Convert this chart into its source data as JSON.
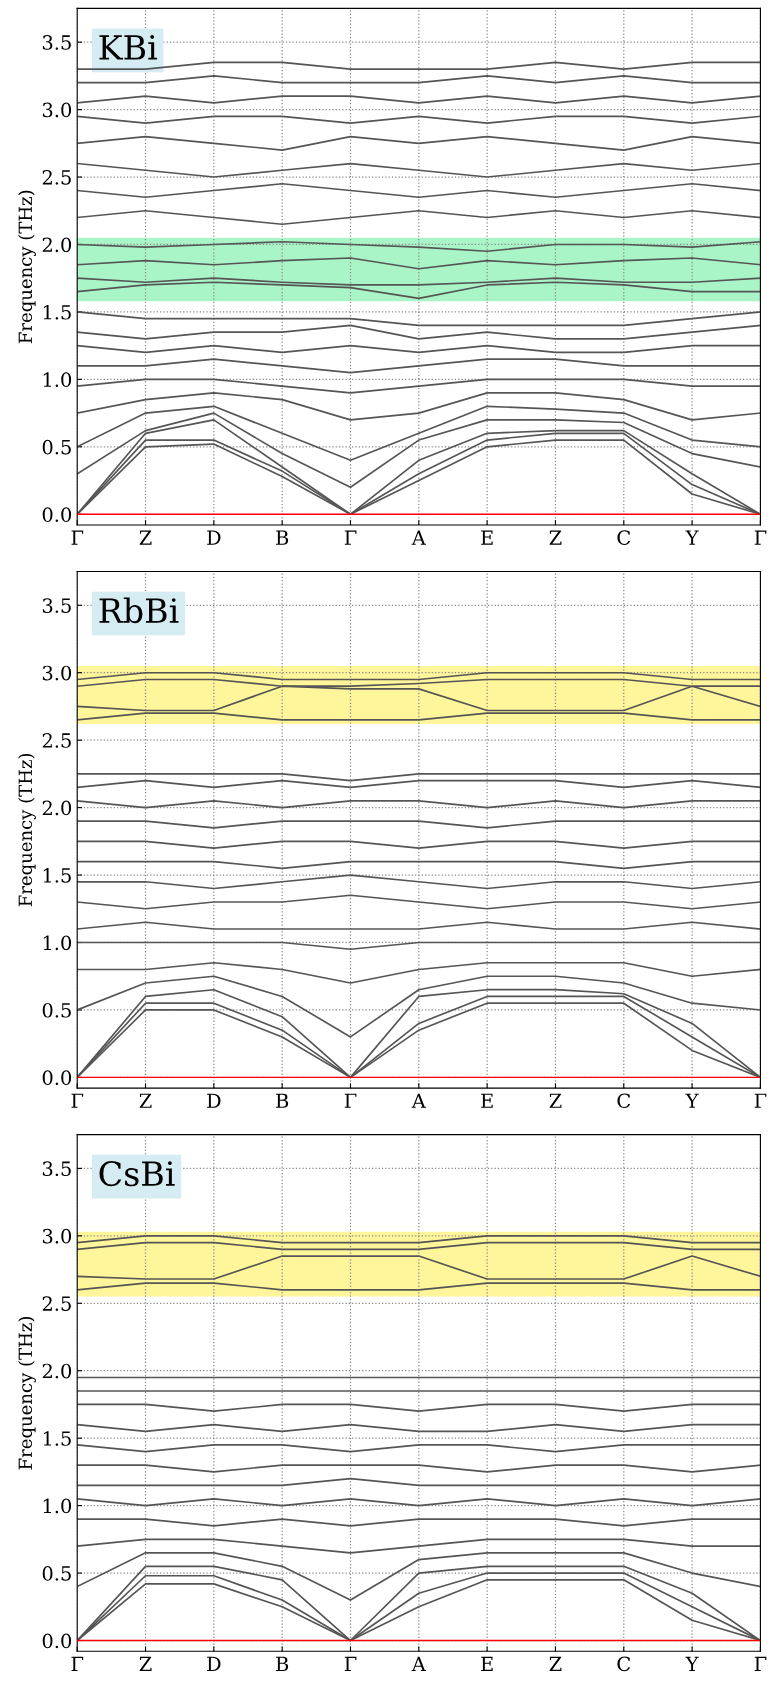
{
  "chart_data": [
    {
      "type": "line",
      "ylabel": "Frequency (THz)",
      "annotations": [
        "KBi"
      ],
      "categories": [
        "Γ",
        "Z",
        "D",
        "B",
        "Γ",
        "A",
        "E",
        "Z",
        "C",
        "Y",
        "Γ"
      ],
      "ylim": [
        -0.08,
        3.75
      ],
      "yticks": [
        {
          "value": 0,
          "label": "0.0"
        },
        {
          "value": 0.5,
          "label": "0.5"
        },
        {
          "value": 1,
          "label": "1.0"
        },
        {
          "value": 1.5,
          "label": "1.5"
        },
        {
          "value": 2,
          "label": "2.0"
        },
        {
          "value": 2.5,
          "label": "2.5"
        },
        {
          "value": 3,
          "label": "3.0"
        },
        {
          "value": 3.5,
          "label": "3.5"
        }
      ],
      "grid": true,
      "marker": "none",
      "line_style": "solid",
      "ref_lines": [
        {
          "axis": "y",
          "value": 0,
          "color": "#ff0000"
        }
      ],
      "bands": [
        {
          "axis": "y",
          "from": 1.58,
          "to": 2.05,
          "color": "#aaf5c8"
        }
      ],
      "series": [
        {
          "color": "#555555",
          "values": [
            0,
            0.5,
            0.52,
            0.28,
            0,
            0.25,
            0.5,
            0.55,
            0.55,
            0.15,
            0
          ]
        },
        {
          "color": "#555555",
          "values": [
            0,
            0.55,
            0.55,
            0.32,
            0,
            0.3,
            0.55,
            0.6,
            0.6,
            0.22,
            0
          ]
        },
        {
          "color": "#555555",
          "values": [
            0,
            0.6,
            0.7,
            0.35,
            0,
            0.4,
            0.6,
            0.62,
            0.62,
            0.3,
            0
          ]
        },
        {
          "color": "#555555",
          "values": [
            0.3,
            0.62,
            0.75,
            0.45,
            0.2,
            0.55,
            0.7,
            0.7,
            0.68,
            0.45,
            0.35
          ]
        },
        {
          "color": "#555555",
          "values": [
            0.5,
            0.75,
            0.8,
            0.6,
            0.4,
            0.6,
            0.8,
            0.78,
            0.75,
            0.55,
            0.5
          ]
        },
        {
          "color": "#555555",
          "values": [
            0.75,
            0.85,
            0.9,
            0.85,
            0.7,
            0.75,
            0.9,
            0.9,
            0.85,
            0.7,
            0.75
          ]
        },
        {
          "color": "#555555",
          "values": [
            0.95,
            1.0,
            1.0,
            0.95,
            0.9,
            0.95,
            1.0,
            1.0,
            1.0,
            0.95,
            0.95
          ]
        },
        {
          "color": "#555555",
          "values": [
            1.1,
            1.1,
            1.15,
            1.1,
            1.05,
            1.1,
            1.15,
            1.15,
            1.1,
            1.1,
            1.1
          ]
        },
        {
          "color": "#555555",
          "values": [
            1.25,
            1.2,
            1.25,
            1.2,
            1.25,
            1.2,
            1.25,
            1.2,
            1.2,
            1.25,
            1.25
          ]
        },
        {
          "color": "#555555",
          "values": [
            1.35,
            1.3,
            1.35,
            1.35,
            1.4,
            1.3,
            1.35,
            1.3,
            1.3,
            1.35,
            1.4
          ]
        },
        {
          "color": "#555555",
          "values": [
            1.5,
            1.45,
            1.45,
            1.45,
            1.45,
            1.4,
            1.4,
            1.4,
            1.4,
            1.45,
            1.5
          ]
        },
        {
          "color": "#555555",
          "values": [
            1.65,
            1.7,
            1.72,
            1.7,
            1.68,
            1.6,
            1.7,
            1.72,
            1.7,
            1.65,
            1.65
          ]
        },
        {
          "color": "#555555",
          "values": [
            1.75,
            1.72,
            1.75,
            1.72,
            1.7,
            1.7,
            1.72,
            1.75,
            1.72,
            1.72,
            1.75
          ]
        },
        {
          "color": "#555555",
          "values": [
            1.85,
            1.88,
            1.85,
            1.88,
            1.9,
            1.82,
            1.88,
            1.85,
            1.88,
            1.9,
            1.85
          ]
        },
        {
          "color": "#555555",
          "values": [
            2.0,
            1.98,
            2.0,
            2.02,
            2.0,
            1.98,
            1.95,
            2.0,
            2.0,
            1.98,
            2.02
          ]
        },
        {
          "color": "#555555",
          "values": [
            2.2,
            2.25,
            2.2,
            2.15,
            2.2,
            2.25,
            2.2,
            2.25,
            2.2,
            2.25,
            2.2
          ]
        },
        {
          "color": "#555555",
          "values": [
            2.4,
            2.35,
            2.4,
            2.45,
            2.4,
            2.35,
            2.4,
            2.35,
            2.4,
            2.45,
            2.4
          ]
        },
        {
          "color": "#555555",
          "values": [
            2.6,
            2.55,
            2.5,
            2.55,
            2.6,
            2.55,
            2.5,
            2.55,
            2.6,
            2.55,
            2.6
          ]
        },
        {
          "color": "#555555",
          "values": [
            2.75,
            2.8,
            2.75,
            2.7,
            2.8,
            2.75,
            2.8,
            2.75,
            2.7,
            2.8,
            2.75
          ]
        },
        {
          "color": "#555555",
          "values": [
            2.95,
            2.9,
            2.95,
            2.95,
            2.9,
            2.95,
            2.9,
            2.95,
            2.95,
            2.9,
            2.95
          ]
        },
        {
          "color": "#555555",
          "values": [
            3.05,
            3.1,
            3.05,
            3.1,
            3.1,
            3.05,
            3.1,
            3.05,
            3.1,
            3.05,
            3.1
          ]
        },
        {
          "color": "#555555",
          "values": [
            3.2,
            3.2,
            3.25,
            3.2,
            3.2,
            3.2,
            3.25,
            3.2,
            3.25,
            3.2,
            3.2
          ]
        },
        {
          "color": "#555555",
          "values": [
            3.3,
            3.3,
            3.35,
            3.35,
            3.3,
            3.3,
            3.3,
            3.35,
            3.3,
            3.35,
            3.35
          ]
        }
      ]
    },
    {
      "type": "line",
      "ylabel": "Frequency (THz)",
      "annotations": [
        "RbBi"
      ],
      "categories": [
        "Γ",
        "Z",
        "D",
        "B",
        "Γ",
        "A",
        "E",
        "Z",
        "C",
        "Y",
        "Γ"
      ],
      "ylim": [
        -0.08,
        3.75
      ],
      "yticks": [
        {
          "value": 0,
          "label": "0.0"
        },
        {
          "value": 0.5,
          "label": "0.5"
        },
        {
          "value": 1,
          "label": "1.0"
        },
        {
          "value": 1.5,
          "label": "1.5"
        },
        {
          "value": 2,
          "label": "2.0"
        },
        {
          "value": 2.5,
          "label": "2.5"
        },
        {
          "value": 3,
          "label": "3.0"
        },
        {
          "value": 3.5,
          "label": "3.5"
        }
      ],
      "grid": true,
      "marker": "none",
      "line_style": "solid",
      "ref_lines": [
        {
          "axis": "y",
          "value": 0,
          "color": "#ff0000"
        }
      ],
      "bands": [
        {
          "axis": "y",
          "from": 2.62,
          "to": 3.05,
          "color": "#fff59a"
        }
      ],
      "series": [
        {
          "color": "#555555",
          "values": [
            0,
            0.5,
            0.5,
            0.3,
            0,
            0.35,
            0.55,
            0.55,
            0.55,
            0.2,
            0
          ]
        },
        {
          "color": "#555555",
          "values": [
            0,
            0.55,
            0.55,
            0.35,
            0,
            0.4,
            0.6,
            0.6,
            0.6,
            0.3,
            0
          ]
        },
        {
          "color": "#555555",
          "values": [
            0,
            0.6,
            0.65,
            0.45,
            0,
            0.6,
            0.65,
            0.65,
            0.62,
            0.4,
            0
          ]
        },
        {
          "color": "#555555",
          "values": [
            0.5,
            0.7,
            0.75,
            0.6,
            0.3,
            0.65,
            0.75,
            0.75,
            0.7,
            0.55,
            0.5
          ]
        },
        {
          "color": "#555555",
          "values": [
            0.8,
            0.8,
            0.85,
            0.8,
            0.7,
            0.8,
            0.85,
            0.85,
            0.85,
            0.75,
            0.8
          ]
        },
        {
          "color": "#555555",
          "values": [
            1.0,
            1.0,
            1.0,
            1.0,
            0.95,
            1.0,
            1.0,
            1.0,
            1.0,
            1.0,
            1.0
          ]
        },
        {
          "color": "#555555",
          "values": [
            1.1,
            1.15,
            1.1,
            1.1,
            1.1,
            1.1,
            1.15,
            1.1,
            1.1,
            1.15,
            1.1
          ]
        },
        {
          "color": "#555555",
          "values": [
            1.3,
            1.25,
            1.3,
            1.3,
            1.35,
            1.3,
            1.25,
            1.3,
            1.3,
            1.25,
            1.3
          ]
        },
        {
          "color": "#555555",
          "values": [
            1.45,
            1.45,
            1.4,
            1.45,
            1.5,
            1.45,
            1.4,
            1.45,
            1.45,
            1.4,
            1.45
          ]
        },
        {
          "color": "#555555",
          "values": [
            1.6,
            1.6,
            1.6,
            1.55,
            1.6,
            1.6,
            1.6,
            1.6,
            1.55,
            1.6,
            1.6
          ]
        },
        {
          "color": "#555555",
          "values": [
            1.75,
            1.75,
            1.7,
            1.75,
            1.75,
            1.7,
            1.75,
            1.75,
            1.7,
            1.75,
            1.75
          ]
        },
        {
          "color": "#555555",
          "values": [
            1.9,
            1.9,
            1.85,
            1.9,
            1.9,
            1.9,
            1.85,
            1.9,
            1.9,
            1.9,
            1.9
          ]
        },
        {
          "color": "#555555",
          "values": [
            2.05,
            2.0,
            2.05,
            2.0,
            2.05,
            2.05,
            2.0,
            2.05,
            2.0,
            2.05,
            2.05
          ]
        },
        {
          "color": "#555555",
          "values": [
            2.15,
            2.2,
            2.15,
            2.2,
            2.15,
            2.2,
            2.2,
            2.2,
            2.15,
            2.2,
            2.15
          ]
        },
        {
          "color": "#555555",
          "values": [
            2.25,
            2.25,
            2.25,
            2.25,
            2.2,
            2.25,
            2.25,
            2.25,
            2.25,
            2.25,
            2.25
          ]
        },
        {
          "color": "#555555",
          "values": [
            2.65,
            2.7,
            2.7,
            2.65,
            2.65,
            2.65,
            2.7,
            2.7,
            2.7,
            2.65,
            2.65
          ]
        },
        {
          "color": "#555555",
          "values": [
            2.75,
            2.72,
            2.72,
            2.9,
            2.88,
            2.88,
            2.72,
            2.72,
            2.72,
            2.9,
            2.75
          ]
        },
        {
          "color": "#555555",
          "values": [
            2.9,
            2.95,
            2.95,
            2.9,
            2.9,
            2.92,
            2.95,
            2.95,
            2.95,
            2.9,
            2.9
          ]
        },
        {
          "color": "#555555",
          "values": [
            2.95,
            3.0,
            3.0,
            2.95,
            2.95,
            2.95,
            3.0,
            3.0,
            3.0,
            2.95,
            2.95
          ]
        }
      ]
    },
    {
      "type": "line",
      "ylabel": "Frequency (THz)",
      "annotations": [
        "CsBi"
      ],
      "categories": [
        "Γ",
        "Z",
        "D",
        "B",
        "Γ",
        "A",
        "E",
        "Z",
        "C",
        "Y",
        "Γ"
      ],
      "ylim": [
        -0.08,
        3.75
      ],
      "yticks": [
        {
          "value": 0,
          "label": "0.0"
        },
        {
          "value": 0.5,
          "label": "0.5"
        },
        {
          "value": 1,
          "label": "1.0"
        },
        {
          "value": 1.5,
          "label": "1.5"
        },
        {
          "value": 2,
          "label": "2.0"
        },
        {
          "value": 2.5,
          "label": "2.5"
        },
        {
          "value": 3,
          "label": "3.0"
        },
        {
          "value": 3.5,
          "label": "3.5"
        }
      ],
      "grid": true,
      "marker": "none",
      "line_style": "solid",
      "ref_lines": [
        {
          "axis": "y",
          "value": 0,
          "color": "#ff0000"
        }
      ],
      "bands": [
        {
          "axis": "y",
          "from": 2.55,
          "to": 3.03,
          "color": "#fff59a"
        }
      ],
      "series": [
        {
          "color": "#555555",
          "values": [
            0,
            0.42,
            0.42,
            0.25,
            0,
            0.25,
            0.45,
            0.45,
            0.45,
            0.15,
            0
          ]
        },
        {
          "color": "#555555",
          "values": [
            0,
            0.48,
            0.48,
            0.3,
            0,
            0.35,
            0.5,
            0.5,
            0.5,
            0.25,
            0
          ]
        },
        {
          "color": "#555555",
          "values": [
            0,
            0.55,
            0.55,
            0.45,
            0,
            0.5,
            0.55,
            0.55,
            0.55,
            0.35,
            0
          ]
        },
        {
          "color": "#555555",
          "values": [
            0.4,
            0.65,
            0.65,
            0.55,
            0.3,
            0.6,
            0.65,
            0.65,
            0.65,
            0.5,
            0.4
          ]
        },
        {
          "color": "#555555",
          "values": [
            0.7,
            0.75,
            0.75,
            0.7,
            0.65,
            0.7,
            0.75,
            0.75,
            0.75,
            0.7,
            0.7
          ]
        },
        {
          "color": "#555555",
          "values": [
            0.9,
            0.9,
            0.85,
            0.9,
            0.85,
            0.9,
            0.9,
            0.9,
            0.85,
            0.9,
            0.9
          ]
        },
        {
          "color": "#555555",
          "values": [
            1.05,
            1.0,
            1.05,
            1.0,
            1.05,
            1.0,
            1.05,
            1.0,
            1.05,
            1.0,
            1.05
          ]
        },
        {
          "color": "#555555",
          "values": [
            1.15,
            1.15,
            1.15,
            1.15,
            1.2,
            1.15,
            1.15,
            1.15,
            1.15,
            1.15,
            1.15
          ]
        },
        {
          "color": "#555555",
          "values": [
            1.3,
            1.3,
            1.25,
            1.3,
            1.3,
            1.3,
            1.25,
            1.3,
            1.3,
            1.25,
            1.3
          ]
        },
        {
          "color": "#555555",
          "values": [
            1.45,
            1.4,
            1.45,
            1.45,
            1.4,
            1.45,
            1.45,
            1.4,
            1.45,
            1.45,
            1.45
          ]
        },
        {
          "color": "#555555",
          "values": [
            1.6,
            1.55,
            1.6,
            1.55,
            1.6,
            1.55,
            1.55,
            1.6,
            1.55,
            1.6,
            1.6
          ]
        },
        {
          "color": "#555555",
          "values": [
            1.75,
            1.75,
            1.7,
            1.75,
            1.75,
            1.7,
            1.75,
            1.75,
            1.7,
            1.75,
            1.75
          ]
        },
        {
          "color": "#555555",
          "values": [
            1.85,
            1.85,
            1.85,
            1.85,
            1.85,
            1.85,
            1.85,
            1.85,
            1.85,
            1.85,
            1.85
          ]
        },
        {
          "color": "#555555",
          "values": [
            1.95,
            1.95,
            1.95,
            1.95,
            1.95,
            1.95,
            1.95,
            1.95,
            1.95,
            1.95,
            1.95
          ]
        },
        {
          "color": "#555555",
          "values": [
            2.6,
            2.65,
            2.65,
            2.6,
            2.6,
            2.6,
            2.65,
            2.65,
            2.65,
            2.6,
            2.6
          ]
        },
        {
          "color": "#555555",
          "values": [
            2.7,
            2.68,
            2.68,
            2.85,
            2.85,
            2.85,
            2.68,
            2.68,
            2.68,
            2.85,
            2.7
          ]
        },
        {
          "color": "#555555",
          "values": [
            2.9,
            2.95,
            2.95,
            2.9,
            2.9,
            2.9,
            2.95,
            2.95,
            2.95,
            2.9,
            2.9
          ]
        },
        {
          "color": "#555555",
          "values": [
            2.95,
            3.0,
            3.0,
            2.95,
            2.95,
            2.95,
            3.0,
            3.0,
            3.0,
            2.95,
            2.95
          ]
        }
      ]
    }
  ]
}
